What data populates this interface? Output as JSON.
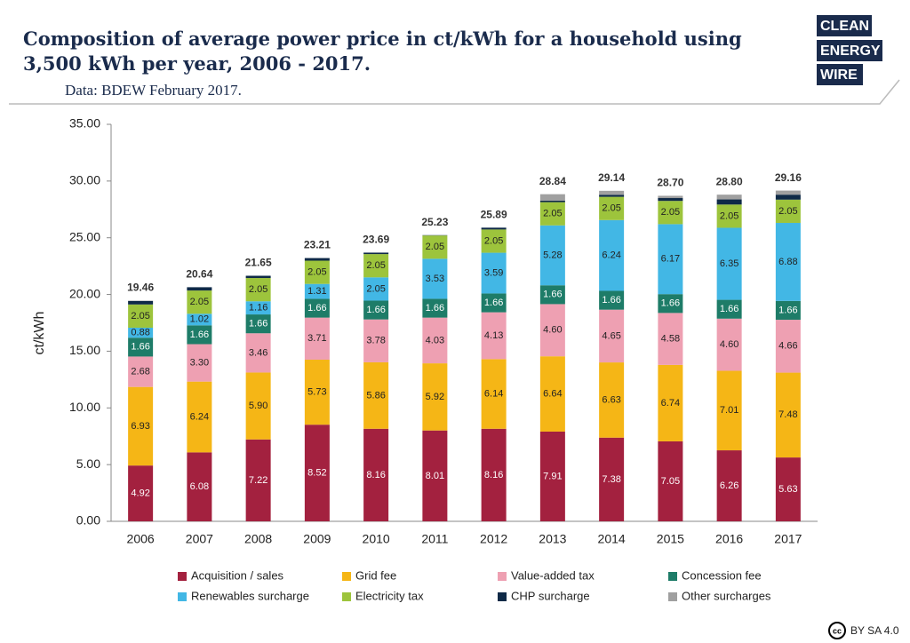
{
  "chart_data": {
    "type": "stacked-bar",
    "title": [
      "Composition of average power price in ct/kWh for a household using",
      "3,500 kWh per year, 2006 - 2017."
    ],
    "subtitle": "Data: BDEW February 2017.",
    "y_label": "ct/kWh",
    "categories": [
      "2006",
      "2007",
      "2008",
      "2009",
      "2010",
      "2011",
      "2012",
      "2013",
      "2014",
      "2015",
      "2016",
      "2017"
    ],
    "ylim": [
      0,
      35
    ],
    "yticks": [
      {
        "value": 0,
        "label": "0.00"
      },
      {
        "value": 5,
        "label": "5.00"
      },
      {
        "value": 10,
        "label": "10.00"
      },
      {
        "value": 15,
        "label": "15.00"
      },
      {
        "value": 20,
        "label": "20.00"
      },
      {
        "value": 25,
        "label": "25.00"
      },
      {
        "value": 30,
        "label": "30.00"
      },
      {
        "value": 35,
        "label": "35.00"
      }
    ],
    "series": [
      {
        "name": "Acquisition / sales",
        "color": "#a3213f",
        "label_color": "#ffffff",
        "values": [
          4.92,
          6.08,
          7.22,
          8.52,
          8.16,
          8.01,
          8.16,
          7.91,
          7.38,
          7.05,
          6.26,
          5.63
        ],
        "value_labels": [
          "4.92",
          "6.08",
          "7.22",
          "8.52",
          "8.16",
          "8.01",
          "8.16",
          "7.91",
          "7.38",
          "7.05",
          "6.26",
          "5.63"
        ]
      },
      {
        "name": "Grid fee",
        "color": "#f5b616",
        "label_color": "#222222",
        "values": [
          6.93,
          6.24,
          5.9,
          5.73,
          5.86,
          5.92,
          6.14,
          6.64,
          6.63,
          6.74,
          7.01,
          7.48
        ],
        "value_labels": [
          "6.93",
          "6.24",
          "5.90",
          "5.73",
          "5.86",
          "5.92",
          "6.14",
          "6.64",
          "6.63",
          "6.74",
          "7.01",
          "7.48"
        ]
      },
      {
        "name": "Value-added tax",
        "color": "#eea0b2",
        "label_color": "#222222",
        "values": [
          2.68,
          3.3,
          3.46,
          3.71,
          3.78,
          4.03,
          4.13,
          4.6,
          4.65,
          4.58,
          4.6,
          4.66
        ],
        "value_labels": [
          "2.68",
          "3.30",
          "3.46",
          "3.71",
          "3.78",
          "4.03",
          "4.13",
          "4.60",
          "4.65",
          "4.58",
          "4.60",
          "4.66"
        ]
      },
      {
        "name": "Concession fee",
        "color": "#1e7c68",
        "label_color": "#ffffff",
        "values": [
          1.66,
          1.66,
          1.66,
          1.66,
          1.66,
          1.66,
          1.66,
          1.66,
          1.66,
          1.66,
          1.66,
          1.66
        ],
        "value_labels": [
          "1.66",
          "1.66",
          "1.66",
          "1.66",
          "1.66",
          "1.66",
          "1.66",
          "1.66",
          "1.66",
          "1.66",
          "1.66",
          "1.66"
        ]
      },
      {
        "name": "Renewables surcharge",
        "color": "#42b7e5",
        "label_color": "#222222",
        "values": [
          0.88,
          1.02,
          1.16,
          1.31,
          2.05,
          3.53,
          3.59,
          5.28,
          6.24,
          6.17,
          6.35,
          6.88
        ],
        "value_labels": [
          "0.88",
          "1.02",
          "1.16",
          "1.31",
          "2.05",
          "3.53",
          "3.59",
          "5.28",
          "6.24",
          "6.17",
          "6.35",
          "6.88"
        ]
      },
      {
        "name": "Electricity tax",
        "color": "#9dc43c",
        "label_color": "#222222",
        "values": [
          2.05,
          2.05,
          2.05,
          2.05,
          2.05,
          2.05,
          2.05,
          2.05,
          2.05,
          2.05,
          2.05,
          2.05
        ],
        "value_labels": [
          "2.05",
          "2.05",
          "2.05",
          "2.05",
          "2.05",
          "2.05",
          "2.05",
          "2.05",
          "2.05",
          "2.05",
          "2.05",
          "2.05"
        ]
      },
      {
        "name": "CHP surcharge",
        "color": "#0f2a47",
        "values": [
          0.31,
          0.29,
          0.2,
          0.23,
          0.13,
          0.03,
          0.16,
          0.13,
          0.18,
          0.25,
          0.45,
          0.44
        ]
      },
      {
        "name": "Other surcharges",
        "color": "#a0a0a0",
        "values": [
          0.03,
          0,
          0,
          0,
          0,
          0,
          0,
          0.57,
          0.35,
          0.2,
          0.42,
          0.36
        ]
      }
    ],
    "totals": {
      "values": [
        19.46,
        20.64,
        21.65,
        23.21,
        23.69,
        25.23,
        25.89,
        28.84,
        29.14,
        28.7,
        28.8,
        29.16
      ],
      "value_labels": [
        "19.46",
        "20.64",
        "21.65",
        "23.21",
        "23.69",
        "25.23",
        "25.89",
        "28.84",
        "29.14",
        "28.70",
        "28.80",
        "29.16"
      ]
    }
  },
  "logo": [
    "CLEAN",
    "ENERGY",
    "WIRE"
  ],
  "license_icon": "cc",
  "license": "BY SA 4.0"
}
